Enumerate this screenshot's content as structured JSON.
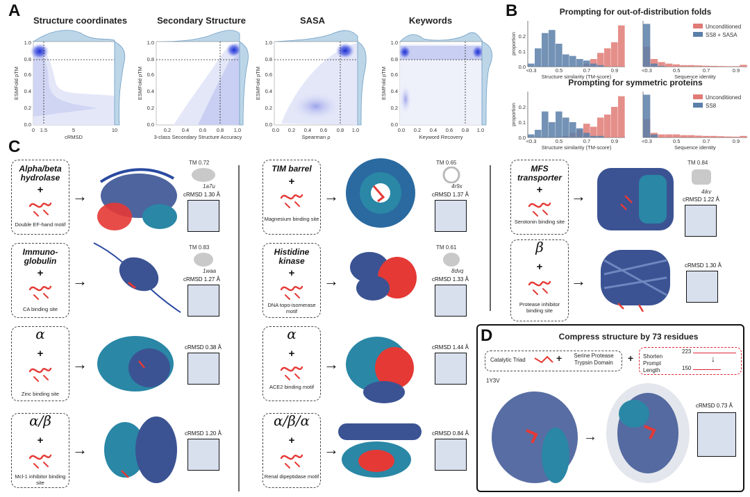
{
  "panels": {
    "a": "A",
    "b": "B",
    "c": "C",
    "d": "D"
  },
  "panel_a": {
    "ylabel": "ESMFold pTM",
    "plots": [
      {
        "title": "Structure coordinates",
        "xlabel": "cRMSD",
        "xticks": [
          "0",
          "1.5",
          "5",
          "10"
        ]
      },
      {
        "title": "Secondary Structure",
        "xlabel": "3-class Secondary Structure Accuracy",
        "xticks": [
          "0.2",
          "0.4",
          "0.6",
          "0.8",
          "1.0"
        ]
      },
      {
        "title": "SASA",
        "xlabel": "Spearman ρ",
        "xticks": [
          "0.0",
          "0.2",
          "0.4",
          "0.6",
          "0.8",
          "1.0"
        ]
      },
      {
        "title": "Keywords",
        "xlabel": "Keyword Recovery",
        "xticks": [
          "0.0",
          "0.2",
          "0.4",
          "0.6",
          "0.8",
          "1.0"
        ]
      }
    ],
    "yticks": [
      "0.0",
      "0.2",
      "0.4",
      "0.6",
      "0.8",
      "1.0"
    ]
  },
  "chart_data": [
    {
      "type": "bar",
      "title": "Prompting for out-of-distribution folds",
      "xlabel": "Structure similarity (TM-score)",
      "ylabel": "proportion",
      "xticks": [
        "<0.3",
        "0.5",
        "0.7",
        "0.9"
      ],
      "yticks": [
        "0.0",
        "0.1",
        "0.2"
      ],
      "ylim": [
        0,
        0.3
      ],
      "categories": [
        "0.30",
        "0.35",
        "0.40",
        "0.45",
        "0.50",
        "0.55",
        "0.60",
        "0.65",
        "0.70",
        "0.75",
        "0.80",
        "0.85",
        "0.90",
        "0.95"
      ],
      "series": [
        {
          "name": "Unconditioned",
          "color": "#e07b76",
          "values": [
            0,
            0,
            0,
            0,
            0,
            0,
            0,
            0,
            0.02,
            0.05,
            0.09,
            0.12,
            0.16,
            0.27
          ]
        },
        {
          "name": "SS8 + SASA",
          "color": "#5a7fa8",
          "values": [
            0.02,
            0.12,
            0.22,
            0.24,
            0.15,
            0.08,
            0.07,
            0.05,
            0.04,
            0.02,
            0.01,
            0,
            0,
            0
          ]
        }
      ]
    },
    {
      "type": "bar",
      "xlabel": "Sequence identity",
      "xticks": [
        "<0.3",
        "0.5",
        "0.7",
        "0.9"
      ],
      "ylim": [
        0,
        0.3
      ],
      "categories": [
        "0.30",
        "0.35",
        "0.40",
        "0.45",
        "0.50",
        "0.55",
        "0.60",
        "0.65",
        "0.70",
        "0.75",
        "0.80",
        "0.85",
        "0.90",
        "0.95"
      ],
      "series": [
        {
          "name": "Unconditioned",
          "color": "#e07b76",
          "values": [
            0.13,
            0.05,
            0.03,
            0.02,
            0.015,
            0.01,
            0.01,
            0.008,
            0.006,
            0.005,
            0.004,
            0.003,
            0.003,
            0.012
          ]
        },
        {
          "name": "SS8 + SASA",
          "color": "#5a7fa8",
          "values": [
            0.28,
            0.02,
            0.005,
            0,
            0,
            0,
            0,
            0,
            0,
            0,
            0,
            0,
            0,
            0
          ]
        }
      ],
      "legend": [
        "Unconditioned",
        "SS8 + SASA"
      ]
    },
    {
      "type": "bar",
      "title": "Prompting for symmetric proteins",
      "xlabel": "Structure similarity (TM-score)",
      "ylabel": "proportion",
      "xticks": [
        "<0.3",
        "0.5",
        "0.7",
        "0.9"
      ],
      "yticks": [
        "0.0",
        "0.1",
        "0.2"
      ],
      "ylim": [
        0,
        0.3
      ],
      "categories": [
        "0.30",
        "0.35",
        "0.40",
        "0.45",
        "0.50",
        "0.55",
        "0.60",
        "0.65",
        "0.70",
        "0.75",
        "0.80",
        "0.85",
        "0.90",
        "0.95"
      ],
      "series": [
        {
          "name": "Unconditioned",
          "color": "#e07b76",
          "values": [
            0,
            0,
            0,
            0,
            0,
            0.01,
            0.03,
            0.05,
            0.09,
            0.07,
            0.13,
            0.15,
            0.2,
            0.27
          ]
        },
        {
          "name": "SS8",
          "color": "#5a7fa8",
          "values": [
            0.02,
            0.05,
            0.17,
            0.1,
            0.17,
            0.13,
            0.1,
            0.06,
            0.03,
            0.01,
            0.01,
            0,
            0,
            0
          ]
        }
      ]
    },
    {
      "type": "bar",
      "xlabel": "Sequence identity",
      "xticks": [
        "<0.3",
        "0.5",
        "0.7",
        "0.9"
      ],
      "ylim": [
        0,
        0.3
      ],
      "categories": [
        "0.30",
        "0.35",
        "0.40",
        "0.45",
        "0.50",
        "0.55",
        "0.60",
        "0.65",
        "0.70",
        "0.75",
        "0.80",
        "0.85",
        "0.90",
        "0.95"
      ],
      "series": [
        {
          "name": "Unconditioned",
          "color": "#e07b76",
          "values": [
            0.12,
            0.03,
            0.02,
            0.02,
            0.02,
            0.015,
            0.015,
            0.012,
            0.01,
            0.01,
            0.008,
            0.006,
            0.005,
            0.01
          ]
        },
        {
          "name": "SS8",
          "color": "#5a7fa8",
          "values": [
            0.28,
            0.02,
            0,
            0,
            0,
            0,
            0,
            0,
            0,
            0,
            0,
            0,
            0,
            0
          ]
        }
      ],
      "legend": [
        "Unconditioned",
        "SS8"
      ]
    }
  ],
  "panel_c": {
    "rows": [
      [
        {
          "name": "Alpha/beta hydrolase",
          "greek": false,
          "motif": "Double EF-hand motif",
          "tm": "TM 0.72",
          "pdb": "1a7u",
          "crmsd": "cRMSD 1.30 Å"
        },
        {
          "name": "TIM barrel",
          "greek": false,
          "motif": "Magnesium binding site",
          "tm": "TM 0.65",
          "pdb": "4r9x",
          "crmsd": "cRMSD 1.37 Å"
        },
        {
          "name": "MFS transporter",
          "greek": false,
          "motif": "Serotonin binding site",
          "tm": "TM 0.84",
          "pdb": "4ikv",
          "crmsd": "cRMSD 1.22 Å"
        }
      ],
      [
        {
          "name": "Immuno-globulin",
          "greek": false,
          "motif": "CA binding site",
          "tm": "TM 0.83",
          "pdb": "1waa",
          "crmsd": "cRMSD 1.27 Å"
        },
        {
          "name": "Histidine kinase",
          "greek": false,
          "motif": "DNA topo-isomerase motif",
          "tm": "TM 0.61",
          "pdb": "8dvq",
          "crmsd": "cRMSD 1.33 Å"
        },
        {
          "name": "β",
          "greek": true,
          "motif": "Protease inhibitor binding site",
          "tm": "",
          "pdb": "",
          "crmsd": "cRMSD 1.30 Å"
        }
      ],
      [
        {
          "name": "α",
          "greek": true,
          "motif": "Zinc binding site",
          "tm": "",
          "pdb": "",
          "crmsd": "cRMSD 0.38 Å"
        },
        {
          "name": "α",
          "greek": true,
          "motif": "ACE2 binding motif",
          "tm": "",
          "pdb": "",
          "crmsd": "cRMSD 1.44 Å"
        }
      ],
      [
        {
          "name": "α/β",
          "greek": true,
          "motif": "Mcl-1 inhibitor binding site",
          "tm": "",
          "pdb": "",
          "crmsd": "cRMSD 1.20 Å"
        },
        {
          "name": "α/β/α",
          "greek": true,
          "motif": "Renal dipeptidase motif",
          "tm": "",
          "pdb": "",
          "crmsd": "cRMSD 0.84 Å"
        }
      ]
    ],
    "plus": "+",
    "arrow": "→"
  },
  "panel_d": {
    "title": "Compress structure by 73 residues",
    "triad": "Catalytic Triad",
    "domain": "Serine Protease Trypsin Domain",
    "shorten": "Shorten Prompt Length",
    "len_from": "223",
    "len_to": "150",
    "pdb": "1Y3V",
    "crmsd": "cRMSD 0.73 Å",
    "plus": "+",
    "arrow": "→",
    "down_arrow": "↓"
  }
}
